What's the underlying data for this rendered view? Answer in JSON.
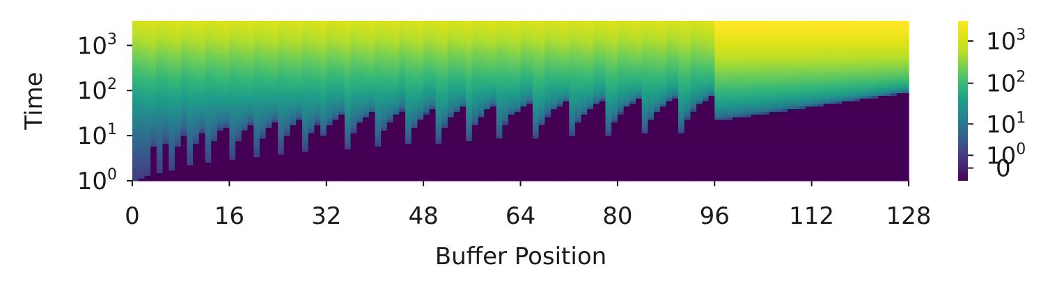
{
  "chart_data": {
    "type": "heatmap",
    "xlabel": "Buffer Position",
    "ylabel": "Time",
    "x_range": [
      0,
      128
    ],
    "x_ticks": [
      "0",
      "16",
      "32",
      "48",
      "64",
      "80",
      "96",
      "112",
      "128"
    ],
    "y_scale": "symlog",
    "y_range": [
      1,
      3500
    ],
    "y_ticks": [
      {
        "base": "10",
        "exp": "0",
        "value": 1
      },
      {
        "base": "10",
        "exp": "1",
        "value": 10
      },
      {
        "base": "10",
        "exp": "2",
        "value": 100
      },
      {
        "base": "10",
        "exp": "3",
        "value": 1000
      }
    ],
    "colorbar": {
      "colormap": "viridis",
      "scale": "symlog",
      "range": [
        -1,
        3000
      ],
      "ticks": [
        {
          "label": "0",
          "base": "",
          "exp": "",
          "value": 0
        },
        {
          "label": "",
          "base": "10",
          "exp": "0",
          "value": 1
        },
        {
          "label": "",
          "base": "10",
          "exp": "1",
          "value": 10
        },
        {
          "label": "",
          "base": "10",
          "exp": "2",
          "value": 100
        },
        {
          "label": "",
          "base": "10",
          "exp": "3",
          "value": 1000
        }
      ]
    },
    "grid": false,
    "legend": "none",
    "columns": 128,
    "pattern": {
      "segment_1": {
        "x": [
          0,
          96
        ],
        "description": "sawtooth: per-position first write time rising stepwise, lighter bands above"
      },
      "segment_2": {
        "x": [
          96,
          128
        ],
        "first_write_time": [
          22,
          95
        ],
        "description": "smooth gradient above a linearly rising floor"
      }
    }
  }
}
